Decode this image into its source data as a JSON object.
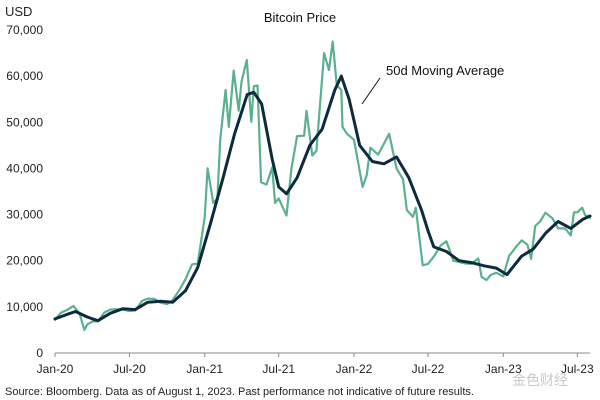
{
  "chart_data": {
    "type": "line",
    "title": "Bitcoin Price",
    "ylabel": "USD",
    "xlabel": "",
    "ylim": [
      0,
      70000
    ],
    "yticks": [
      0,
      10000,
      20000,
      30000,
      40000,
      50000,
      60000,
      70000
    ],
    "ytick_labels": [
      "0",
      "10,000",
      "20,000",
      "30,000",
      "40,000",
      "50,000",
      "60,000",
      "70,000"
    ],
    "xlim": [
      "2020-01-01",
      "2023-08-01"
    ],
    "xticks": [
      "2020-01-01",
      "2020-07-01",
      "2021-01-01",
      "2021-07-01",
      "2022-01-01",
      "2022-07-01",
      "2023-01-01",
      "2023-07-01"
    ],
    "xtick_labels": [
      "Jan-20",
      "Jul-20",
      "Jan-21",
      "Jul-21",
      "Jan-22",
      "Jul-22",
      "Jan-23",
      "Jul-23"
    ],
    "grid": false,
    "legend": "none",
    "annotations": [
      {
        "text": "50d Moving Average",
        "points_to": [
          "2021-12-01",
          57000
        ]
      }
    ],
    "source_note": "Source: Bloomberg. Data as of August 1, 2023. Past performance not indicative of future results.",
    "watermark": "金色财经",
    "colors": {
      "price": "#5bb08f",
      "moving_average": "#0f2a3c",
      "axis": "#888888",
      "text": "#222222"
    },
    "series": [
      {
        "key": "price",
        "x": [
          "2020-01-01",
          "2020-01-15",
          "2020-02-01",
          "2020-02-15",
          "2020-03-01",
          "2020-03-13",
          "2020-03-20",
          "2020-04-01",
          "2020-04-15",
          "2020-05-01",
          "2020-05-15",
          "2020-06-01",
          "2020-06-15",
          "2020-07-01",
          "2020-07-15",
          "2020-08-01",
          "2020-08-15",
          "2020-09-01",
          "2020-09-15",
          "2020-10-01",
          "2020-10-15",
          "2020-11-01",
          "2020-11-15",
          "2020-12-01",
          "2020-12-15",
          "2021-01-01",
          "2021-01-08",
          "2021-01-22",
          "2021-02-01",
          "2021-02-08",
          "2021-02-21",
          "2021-03-01",
          "2021-03-13",
          "2021-03-25",
          "2021-04-01",
          "2021-04-14",
          "2021-04-25",
          "2021-05-01",
          "2021-05-10",
          "2021-05-19",
          "2021-06-01",
          "2021-06-15",
          "2021-06-22",
          "2021-07-01",
          "2021-07-20",
          "2021-08-01",
          "2021-08-15",
          "2021-09-01",
          "2021-09-07",
          "2021-09-21",
          "2021-10-01",
          "2021-10-20",
          "2021-11-01",
          "2021-11-10",
          "2021-11-20",
          "2021-12-01",
          "2021-12-04",
          "2021-12-15",
          "2022-01-01",
          "2022-01-22",
          "2022-02-01",
          "2022-02-10",
          "2022-03-01",
          "2022-03-28",
          "2022-04-15",
          "2022-05-01",
          "2022-05-10",
          "2022-05-25",
          "2022-06-01",
          "2022-06-18",
          "2022-07-01",
          "2022-07-15",
          "2022-08-01",
          "2022-08-15",
          "2022-09-01",
          "2022-09-15",
          "2022-10-01",
          "2022-10-15",
          "2022-11-01",
          "2022-11-09",
          "2022-11-21",
          "2022-12-01",
          "2022-12-15",
          "2023-01-01",
          "2023-01-15",
          "2023-02-01",
          "2023-02-15",
          "2023-03-01",
          "2023-03-10",
          "2023-03-20",
          "2023-04-01",
          "2023-04-14",
          "2023-05-01",
          "2023-05-15",
          "2023-06-01",
          "2023-06-15",
          "2023-06-23",
          "2023-07-01",
          "2023-07-13",
          "2023-07-20",
          "2023-08-01"
        ],
        "values": [
          7200,
          8700,
          9400,
          10200,
          8600,
          5000,
          6200,
          6800,
          6900,
          8800,
          9400,
          9500,
          9400,
          9100,
          9200,
          11300,
          11800,
          11700,
          10900,
          10600,
          11500,
          13800,
          16000,
          19200,
          19400,
          29400,
          40000,
          32500,
          33500,
          46200,
          57000,
          49000,
          61200,
          52500,
          58800,
          63500,
          50100,
          57800,
          58000,
          37000,
          36500,
          40200,
          32500,
          33500,
          29800,
          39900,
          47000,
          47100,
          52500,
          42800,
          43800,
          65000,
          61300,
          67500,
          58000,
          57000,
          49000,
          47500,
          46200,
          36000,
          38500,
          44500,
          43000,
          47500,
          40000,
          37600,
          31000,
          29500,
          31500,
          19000,
          19300,
          20900,
          23300,
          24200,
          20000,
          19700,
          19400,
          19300,
          20500,
          16500,
          15800,
          16900,
          17400,
          16600,
          21000,
          23000,
          24400,
          23500,
          20400,
          27500,
          28500,
          30400,
          29200,
          27000,
          27000,
          25500,
          30500,
          30500,
          31500,
          29900,
          29300
        ]
      },
      {
        "key": "moving_average",
        "x": [
          "2020-01-01",
          "2020-02-01",
          "2020-02-20",
          "2020-03-20",
          "2020-04-15",
          "2020-05-15",
          "2020-06-15",
          "2020-07-15",
          "2020-08-15",
          "2020-09-15",
          "2020-10-15",
          "2020-11-15",
          "2020-12-15",
          "2021-01-15",
          "2021-02-15",
          "2021-03-15",
          "2021-04-15",
          "2021-05-01",
          "2021-05-20",
          "2021-06-15",
          "2021-07-01",
          "2021-07-20",
          "2021-08-15",
          "2021-09-15",
          "2021-10-15",
          "2021-11-15",
          "2021-12-01",
          "2021-12-20",
          "2022-01-15",
          "2022-02-15",
          "2022-03-15",
          "2022-04-15",
          "2022-05-15",
          "2022-06-15",
          "2022-07-01",
          "2022-07-15",
          "2022-08-15",
          "2022-09-15",
          "2022-10-15",
          "2022-11-15",
          "2022-12-15",
          "2023-01-10",
          "2023-02-15",
          "2023-03-15",
          "2023-04-15",
          "2023-05-15",
          "2023-06-15",
          "2023-07-15",
          "2023-08-01"
        ],
        "values": [
          7400,
          8400,
          9000,
          7800,
          7000,
          8600,
          9600,
          9400,
          11000,
          11200,
          11000,
          13500,
          18500,
          28000,
          38000,
          47500,
          56000,
          56500,
          54000,
          42000,
          36000,
          34500,
          38000,
          45000,
          48500,
          57000,
          60000,
          55000,
          45000,
          41500,
          41000,
          42500,
          38000,
          31000,
          26500,
          23000,
          22000,
          20000,
          19600,
          18900,
          18400,
          17000,
          21000,
          22500,
          26000,
          28500,
          27000,
          29000,
          29700
        ]
      }
    ]
  }
}
